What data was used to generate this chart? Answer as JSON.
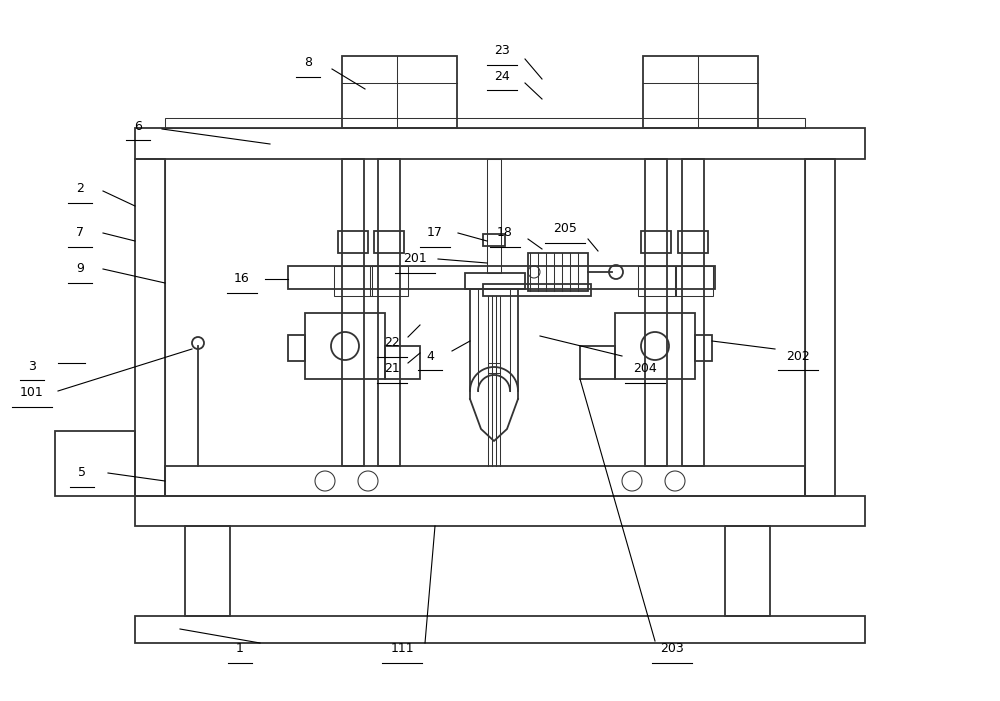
{
  "bg": "#ffffff",
  "lc": "#333333",
  "lw": 1.3,
  "lwt": 0.75,
  "fw": 10.0,
  "fh": 7.01
}
